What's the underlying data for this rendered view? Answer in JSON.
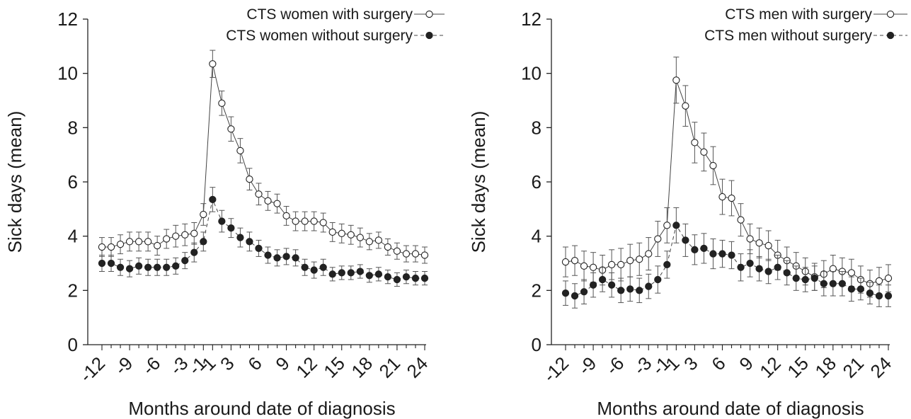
{
  "chart_data": [
    {
      "type": "line",
      "xlabel": "Months around date of diagnosis",
      "ylabel": "Sick days (mean)",
      "ylim": [
        0,
        12
      ],
      "yticks": [
        0,
        2,
        4,
        6,
        8,
        10,
        12
      ],
      "x": [
        -12,
        -11,
        -10,
        -9,
        -8,
        -7,
        -6,
        -5,
        -4,
        -3,
        -2,
        -1,
        1,
        2,
        3,
        4,
        5,
        6,
        7,
        8,
        9,
        10,
        11,
        12,
        13,
        14,
        15,
        16,
        17,
        18,
        19,
        20,
        21,
        22,
        23,
        24
      ],
      "xtick_values": [
        -12,
        -9,
        -6,
        -3,
        -1,
        1,
        3,
        6,
        9,
        12,
        15,
        18,
        21,
        24
      ],
      "xtick_labels": [
        "-12",
        "-9",
        "-6",
        "-3",
        "-1",
        "1",
        "3",
        "6",
        "9",
        "12",
        "15",
        "18",
        "21",
        "24"
      ],
      "grid": false,
      "legend_position": "top-right",
      "series": [
        {
          "name": "CTS women with surgery",
          "marker": "open-circle",
          "line_style": "solid",
          "values": [
            3.6,
            3.6,
            3.7,
            3.8,
            3.8,
            3.8,
            3.65,
            3.9,
            4.0,
            4.05,
            4.1,
            4.8,
            10.35,
            8.9,
            7.95,
            7.15,
            6.1,
            5.55,
            5.3,
            5.2,
            4.75,
            4.55,
            4.55,
            4.55,
            4.5,
            4.15,
            4.1,
            4.05,
            3.95,
            3.8,
            3.85,
            3.6,
            3.45,
            3.35,
            3.35,
            3.3
          ],
          "error": [
            0.35,
            0.35,
            0.35,
            0.35,
            0.35,
            0.35,
            0.35,
            0.35,
            0.4,
            0.4,
            0.4,
            0.4,
            0.5,
            0.45,
            0.45,
            0.45,
            0.4,
            0.4,
            0.35,
            0.35,
            0.35,
            0.35,
            0.35,
            0.35,
            0.35,
            0.35,
            0.35,
            0.35,
            0.35,
            0.3,
            0.3,
            0.3,
            0.3,
            0.3,
            0.3,
            0.3
          ]
        },
        {
          "name": "CTS women without surgery",
          "marker": "filled-circle",
          "line_style": "dashed",
          "values": [
            3.0,
            3.0,
            2.85,
            2.8,
            2.9,
            2.85,
            2.85,
            2.85,
            2.9,
            3.1,
            3.4,
            3.8,
            5.35,
            4.55,
            4.3,
            3.95,
            3.8,
            3.55,
            3.3,
            3.2,
            3.25,
            3.2,
            2.85,
            2.75,
            2.85,
            2.6,
            2.65,
            2.65,
            2.7,
            2.55,
            2.6,
            2.5,
            2.4,
            2.5,
            2.45,
            2.45
          ],
          "error": [
            0.3,
            0.3,
            0.3,
            0.3,
            0.3,
            0.3,
            0.3,
            0.3,
            0.3,
            0.3,
            0.35,
            0.35,
            0.45,
            0.4,
            0.35,
            0.35,
            0.35,
            0.3,
            0.3,
            0.3,
            0.3,
            0.3,
            0.3,
            0.3,
            0.3,
            0.25,
            0.25,
            0.25,
            0.25,
            0.25,
            0.25,
            0.25,
            0.25,
            0.25,
            0.25,
            0.25
          ]
        }
      ]
    },
    {
      "type": "line",
      "xlabel": "Months around date of diagnosis",
      "ylabel": "Sick days (mean)",
      "ylim": [
        0,
        12
      ],
      "yticks": [
        0,
        2,
        4,
        6,
        8,
        10,
        12
      ],
      "x": [
        -12,
        -11,
        -10,
        -9,
        -8,
        -7,
        -6,
        -5,
        -4,
        -3,
        -2,
        -1,
        1,
        2,
        3,
        4,
        5,
        6,
        7,
        8,
        9,
        10,
        11,
        12,
        13,
        14,
        15,
        16,
        17,
        18,
        19,
        20,
        21,
        22,
        23,
        24
      ],
      "xtick_values": [
        -12,
        -9,
        -6,
        -3,
        -1,
        1,
        3,
        6,
        9,
        12,
        15,
        18,
        21,
        24
      ],
      "xtick_labels": [
        "-12",
        "-9",
        "-6",
        "-3",
        "-1",
        "1",
        "3",
        "6",
        "9",
        "12",
        "15",
        "18",
        "21",
        "24"
      ],
      "grid": false,
      "legend_position": "top-right",
      "series": [
        {
          "name": "CTS men with surgery",
          "marker": "open-circle",
          "line_style": "solid",
          "values": [
            3.05,
            3.1,
            2.9,
            2.85,
            2.75,
            2.95,
            2.95,
            3.1,
            3.15,
            3.35,
            3.9,
            4.4,
            9.75,
            8.8,
            7.45,
            7.1,
            6.6,
            5.45,
            5.4,
            4.6,
            3.9,
            3.75,
            3.65,
            3.3,
            3.1,
            2.9,
            2.7,
            2.5,
            2.6,
            2.8,
            2.7,
            2.65,
            2.4,
            2.25,
            2.35,
            2.45
          ],
          "error": [
            0.55,
            0.55,
            0.55,
            0.55,
            0.55,
            0.55,
            0.6,
            0.6,
            0.6,
            0.6,
            0.65,
            0.65,
            0.85,
            0.75,
            0.75,
            0.7,
            0.7,
            0.65,
            0.65,
            0.6,
            0.55,
            0.55,
            0.55,
            0.55,
            0.5,
            0.5,
            0.5,
            0.5,
            0.5,
            0.5,
            0.5,
            0.5,
            0.5,
            0.5,
            0.5,
            0.5
          ]
        },
        {
          "name": "CTS men without surgery",
          "marker": "filled-circle",
          "line_style": "dashed",
          "values": [
            1.9,
            1.8,
            1.95,
            2.2,
            2.4,
            2.2,
            2.0,
            2.05,
            2.0,
            2.15,
            2.4,
            2.95,
            4.4,
            3.85,
            3.5,
            3.55,
            3.35,
            3.35,
            3.3,
            2.85,
            3.0,
            2.8,
            2.7,
            2.85,
            2.65,
            2.45,
            2.4,
            2.45,
            2.25,
            2.25,
            2.25,
            2.05,
            2.05,
            1.9,
            1.8,
            1.8
          ],
          "error": [
            0.45,
            0.45,
            0.45,
            0.45,
            0.45,
            0.45,
            0.45,
            0.45,
            0.45,
            0.45,
            0.5,
            0.5,
            0.65,
            0.6,
            0.55,
            0.55,
            0.55,
            0.5,
            0.5,
            0.5,
            0.5,
            0.45,
            0.45,
            0.45,
            0.45,
            0.45,
            0.45,
            0.45,
            0.45,
            0.45,
            0.45,
            0.45,
            0.4,
            0.4,
            0.4,
            0.4
          ]
        }
      ]
    }
  ]
}
